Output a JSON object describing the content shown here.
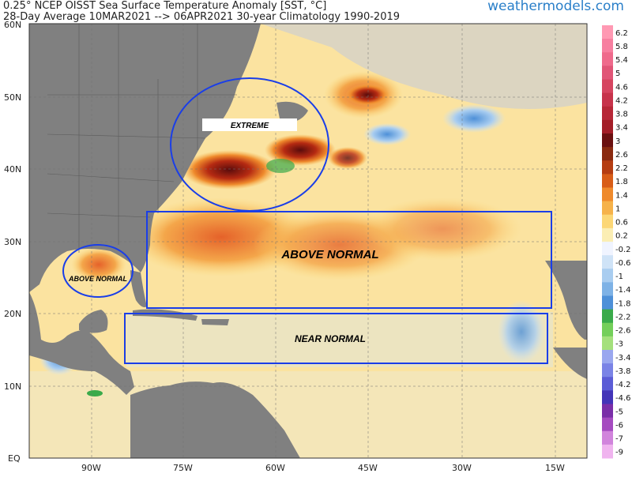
{
  "header": {
    "line1": "0.25° NCEP OISST Sea Surface Temperature Anomaly [SST, °C]",
    "line2": "28-Day Average 10MAR2021 --> 06APR2021   30-year Climatology 1990-2019",
    "brand": "weathermodels.com"
  },
  "axes": {
    "lat_labels": [
      "60N",
      "50N",
      "40N",
      "30N",
      "20N",
      "10N",
      "EQ"
    ],
    "lon_labels": [
      "90W",
      "75W",
      "60W",
      "45W",
      "30W",
      "15W"
    ]
  },
  "annotations": {
    "extreme": "EXTREME",
    "above_normal_main": "ABOVE NORMAL",
    "above_normal_gulf": "ABOVE NORMAL",
    "near_normal": "NEAR NORMAL"
  },
  "colorbar": {
    "labels": [
      "6.2",
      "5.8",
      "5.4",
      "5",
      "4.6",
      "4.2",
      "3.8",
      "3.4",
      "3",
      "2.6",
      "2.2",
      "1.8",
      "1.4",
      "1",
      "0.6",
      "0.2",
      "-0.2",
      "-0.6",
      "-1",
      "-1.4",
      "-1.8",
      "-2.2",
      "-2.6",
      "-3",
      "-3.4",
      "-3.8",
      "-4.2",
      "-4.6",
      "-5",
      "-6",
      "-7",
      "-9"
    ],
    "colors": [
      "#ff99b3",
      "#f77fa0",
      "#ef6a8c",
      "#e15577",
      "#d64560",
      "#c7334b",
      "#b72737",
      "#a31d27",
      "#6b1010",
      "#8a2a10",
      "#b53d12",
      "#d85d18",
      "#ef8a2c",
      "#f6b24a",
      "#fcd776",
      "#fbeeb4",
      "#f0f4ff",
      "#cfe3f7",
      "#a9cdf0",
      "#7eb2e6",
      "#4e90d8",
      "#3aaa4a",
      "#74cf5a",
      "#a4e07c",
      "#9aa7ef",
      "#7a83e6",
      "#5b5cd6",
      "#4334b8",
      "#7a2ea8",
      "#a54bc0",
      "#d184dc",
      "#f0b4ef"
    ]
  }
}
